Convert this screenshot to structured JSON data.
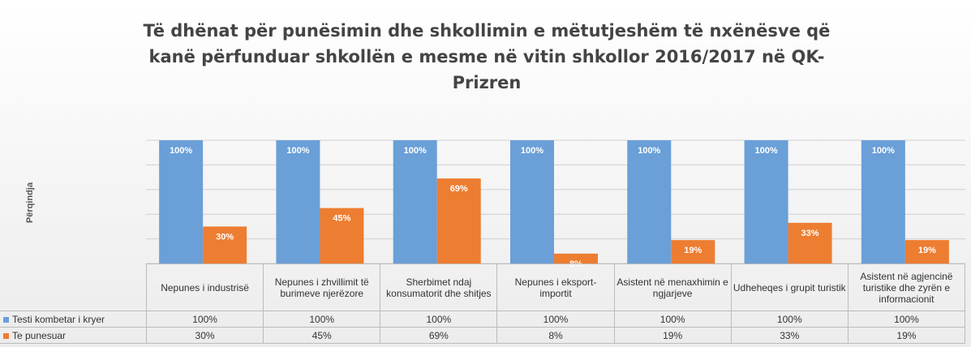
{
  "chart_data": {
    "type": "bar",
    "title": "Të dhënat për punësimin dhe shkollimin e mëtutjeshëm të nxënësve që kanë përfunduar shkollën e mesme në vitin shkollor 2016/2017 në QK-Prizren",
    "y_label": "Përqindja",
    "categories": [
      "Nepunes i industrisë",
      "Nepunes i zhvillimit të burimeve njerëzore",
      "Sherbimet ndaj konsumatorit dhe shitjes",
      "Nepunes i eksport-importit",
      "Asistent në menaxhimin e ngjarjeve",
      "Udheheqes i grupit turistik",
      "Asistent në agjencinë turistike dhe zyrën e informacionit"
    ],
    "series": [
      {
        "name": "Testi kombetar i kryer",
        "color": "#6a9fd8",
        "values": [
          100,
          100,
          100,
          100,
          100,
          100,
          100
        ],
        "value_labels": [
          "100%",
          "100%",
          "100%",
          "100%",
          "100%",
          "100%",
          "100%"
        ]
      },
      {
        "name": "Te punesuar",
        "color": "#ed7d31",
        "values": [
          30,
          45,
          69,
          8,
          19,
          33,
          19
        ],
        "value_labels": [
          "30%",
          "45%",
          "69%",
          "8%",
          "19%",
          "33%",
          "19%"
        ]
      }
    ],
    "ylim": [
      0,
      100
    ],
    "yticks": [
      0,
      20,
      40,
      60,
      80,
      100
    ],
    "grid": true
  }
}
